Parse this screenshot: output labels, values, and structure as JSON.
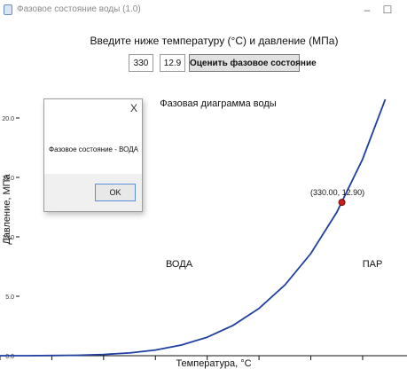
{
  "window": {
    "title": "Фазовое состояние воды (1.0)",
    "minimize": "–",
    "maximize": "☐"
  },
  "form": {
    "prompt": "Введите ниже температуру (°C) и давление (МПа)",
    "temperature_value": "330",
    "pressure_value": "12.9",
    "estimate_button": "Оценить фазовое состояние"
  },
  "dialog": {
    "close": "X",
    "message": "Фазовое состояние - ВОДА",
    "ok_button": "OK"
  },
  "chart_data": {
    "type": "line",
    "title": "Фазовая диаграмма воды",
    "xlabel": "Температура, °C",
    "ylabel": "Давление, МПа",
    "xlim": [
      0,
      380
    ],
    "ylim": [
      0,
      20.0
    ],
    "yticks": [
      "0.0",
      "5.0",
      "10.0",
      "15.0",
      "20.0"
    ],
    "series": [
      {
        "color": "#1f3fa0",
        "x": [
          0,
          25,
          50,
          75,
          100,
          125,
          150,
          175,
          200,
          225,
          250,
          275,
          300,
          325,
          350,
          374
        ],
        "y": [
          0.0006,
          0.0032,
          0.0124,
          0.0386,
          0.1013,
          0.232,
          0.476,
          0.892,
          1.555,
          2.55,
          3.976,
          5.95,
          8.588,
          12.05,
          16.53,
          22.06
        ]
      }
    ],
    "marker": {
      "x": 330.0,
      "y": 12.9,
      "label": "(330.00, 12.90)",
      "color": "#cc1f1f"
    },
    "region_labels": {
      "liquid": "ВОДА",
      "vapor": "ПАР"
    }
  }
}
